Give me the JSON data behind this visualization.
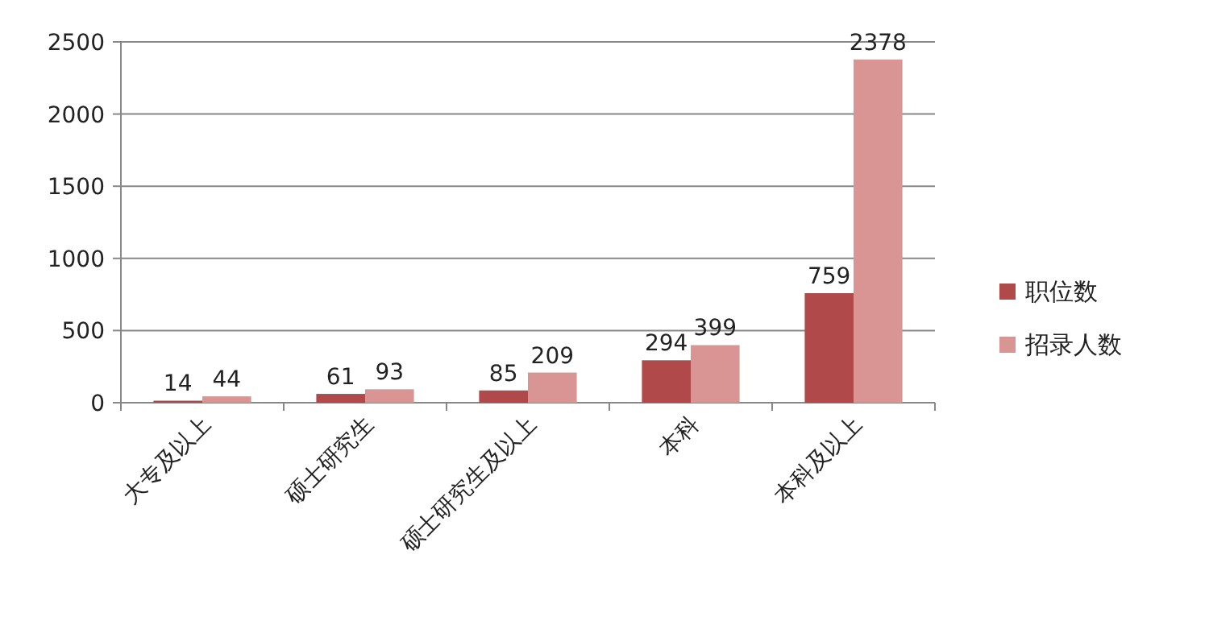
{
  "chart_data": {
    "type": "bar",
    "categories": [
      "大专及以上",
      "硕士研究生",
      "硕士研究生及以上",
      "本科",
      "本科及以上"
    ],
    "series": [
      {
        "name": "职位数",
        "color": "#b0494a",
        "values": [
          14,
          61,
          85,
          294,
          759
        ]
      },
      {
        "name": "招录人数",
        "color": "#d99594",
        "values": [
          44,
          93,
          209,
          399,
          2378
        ]
      }
    ],
    "ylim": [
      0,
      2500
    ],
    "yticks": [
      0,
      500,
      1000,
      1500,
      2000,
      2500
    ],
    "grid": "y",
    "legend": "right",
    "data_labels": true
  }
}
